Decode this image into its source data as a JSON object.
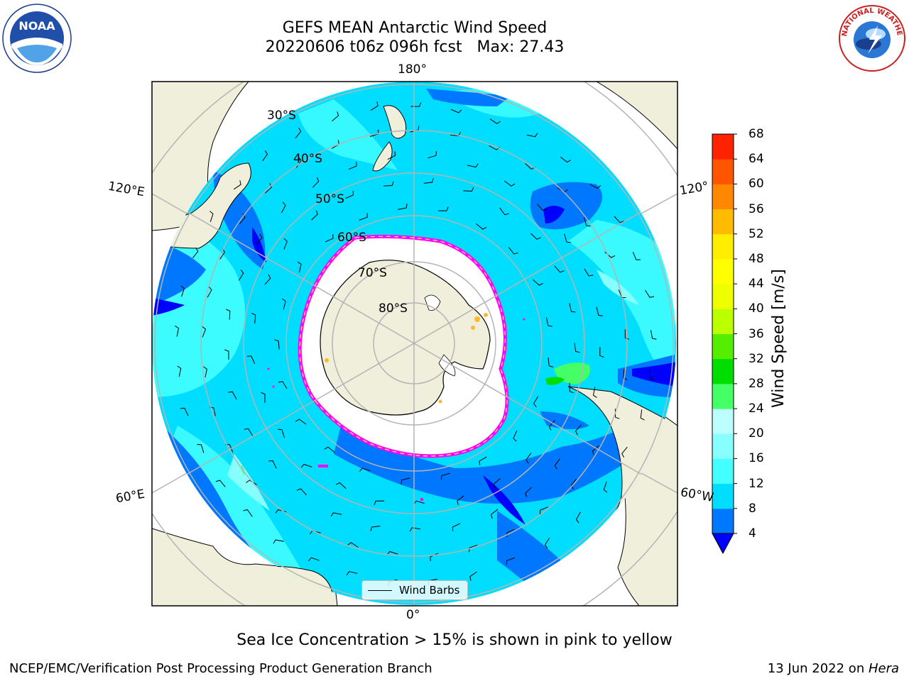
{
  "title": {
    "line1": "GEFS MEAN Antarctic Wind Speed",
    "line2": "20220606 t06z 096h fcst   Max: 27.43"
  },
  "map": {
    "projection": "south polar stereographic",
    "latitude_labels": [
      "30°S",
      "40°S",
      "50°S",
      "60°S",
      "70°S",
      "80°S"
    ],
    "longitude_labels": {
      "top": "180°",
      "bottom": "0°",
      "upper_left": "120°E",
      "lower_left": "60°E",
      "upper_right": "120°",
      "lower_right": "60°W"
    },
    "colors": {
      "land": "#efefdc",
      "ice": "#ffffff",
      "ice_edge": [
        "#ff00ff",
        "#ffc080"
      ],
      "grid": "#b4b4b4"
    }
  },
  "legend": {
    "label": "Wind Barbs"
  },
  "colorbar": {
    "label": "Wind Speed [m/s]",
    "ticks": [
      "4",
      "8",
      "12",
      "16",
      "20",
      "24",
      "28",
      "32",
      "36",
      "40",
      "44",
      "48",
      "52",
      "56",
      "60",
      "64",
      "68"
    ],
    "colors": [
      "#0077ff",
      "#00ddff",
      "#44ffff",
      "#88ffff",
      "#bbffff",
      "#44ff66",
      "#00dd00",
      "#55ee00",
      "#bbff00",
      "#eeff00",
      "#ffff00",
      "#ffee00",
      "#ffbb00",
      "#ff8800",
      "#ff5500",
      "#ff2200"
    ],
    "under_color": "#0000ff"
  },
  "footer": {
    "note": "Sea Ice Concentration > 15% is shown in pink to yellow",
    "left": "NCEP/EMC/Verification Post Processing Product Generation Branch",
    "right_prefix": "13 Jun 2022 on ",
    "right_host": "Hera"
  },
  "logos": {
    "noaa": "NOAA",
    "nws": "NATIONAL WEATHER SERVICE"
  }
}
